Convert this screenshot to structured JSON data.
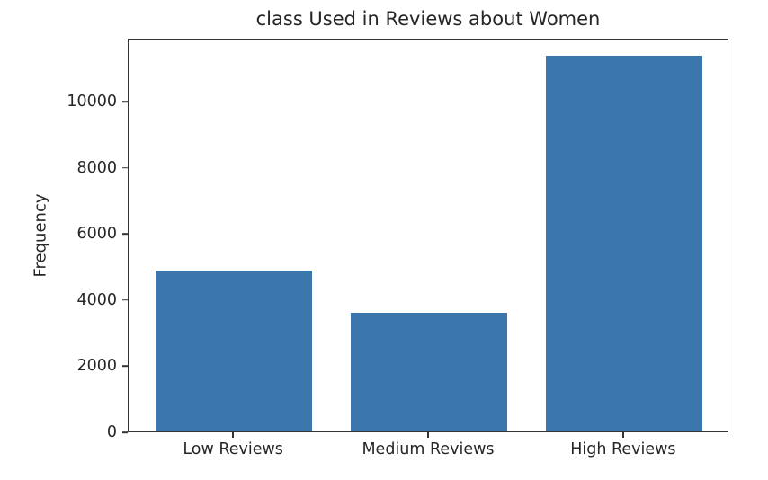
{
  "chart_data": {
    "type": "bar",
    "title": "class Used in Reviews about Women",
    "xlabel": "",
    "ylabel": "Frequency",
    "categories": [
      "Low Reviews",
      "Medium Reviews",
      "High Reviews"
    ],
    "values": [
      4860,
      3580,
      11360
    ],
    "yticks": [
      0,
      2000,
      4000,
      6000,
      8000,
      10000
    ],
    "ylim": [
      0,
      11900
    ],
    "bar_color": "#3b77ad",
    "bar_width_fraction": 0.8,
    "grid": false,
    "legend": null,
    "background_color": "#ffffff",
    "spine_color": "#333333"
  }
}
